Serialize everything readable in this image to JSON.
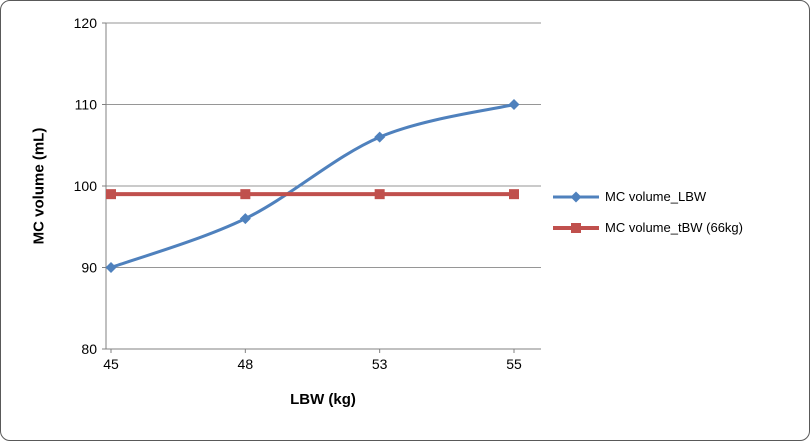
{
  "frame": {
    "background": "#FFFFFF",
    "border_color": "#595959"
  },
  "chart_data": {
    "type": "line",
    "categories": [
      "45",
      "48",
      "53",
      "55"
    ],
    "series": [
      {
        "name": "MC volume_LBW",
        "values": [
          90,
          96,
          106,
          110
        ],
        "color": "#4F81BD",
        "marker": "diamond",
        "smooth": true,
        "line_width": 3
      },
      {
        "name": "MC volume_tBW (66kg)",
        "values": [
          99,
          99,
          99,
          99
        ],
        "color": "#C0504D",
        "marker": "square",
        "smooth": false,
        "line_width": 4
      }
    ],
    "title": "",
    "xlabel": "LBW (kg)",
    "ylabel": "MC volume  (mL)",
    "ylim": [
      80,
      120
    ],
    "yticks": [
      80,
      90,
      100,
      110,
      120
    ],
    "grid": "horizontal",
    "gridline_color": "#969696",
    "axis_color": "#808080",
    "tick_label_color": "#000000",
    "legend_position": "right"
  }
}
